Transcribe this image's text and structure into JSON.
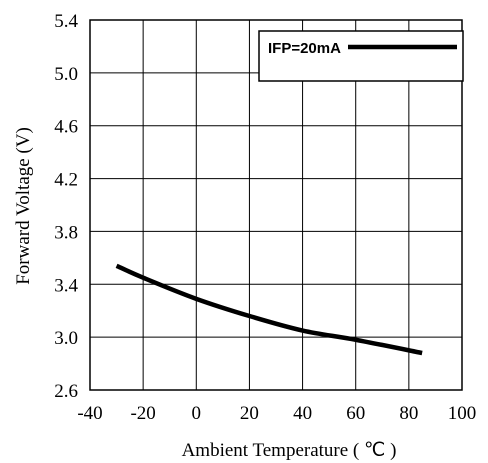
{
  "chart_data": {
    "type": "line",
    "title": "",
    "xlabel": "Ambient Temperature ( ℃ )",
    "ylabel": "Forward Voltage (V)",
    "xlim": [
      -40,
      100
    ],
    "ylim": [
      2.6,
      5.4
    ],
    "x_ticks": [
      "-40",
      "-20",
      "0",
      "20",
      "40",
      "60",
      "80",
      "100"
    ],
    "y_ticks": [
      "5.4",
      "5.0",
      "4.6",
      "4.2",
      "3.8",
      "3.4",
      "3.0",
      "2.6"
    ],
    "grid": true,
    "legend_position": "top-right",
    "series": [
      {
        "name": "IFP=20mA",
        "color": "#000000",
        "x": [
          -30,
          -20,
          0,
          20,
          40,
          60,
          85
        ],
        "y": [
          3.54,
          3.45,
          3.29,
          3.16,
          3.05,
          2.98,
          2.88
        ]
      }
    ]
  }
}
